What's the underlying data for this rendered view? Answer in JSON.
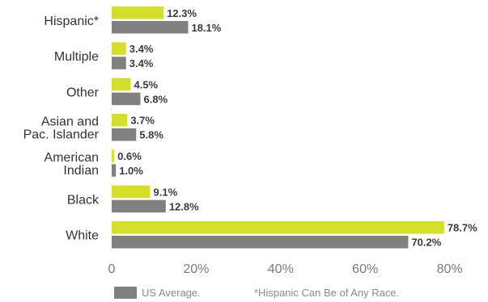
{
  "chart_data": {
    "type": "bar",
    "orientation": "horizontal",
    "categories": [
      [
        "Hispanic*"
      ],
      [
        "Multiple"
      ],
      [
        "Other"
      ],
      [
        "Asian and",
        "Pac. Islander"
      ],
      [
        "American",
        "Indian"
      ],
      [
        "Black"
      ],
      [
        "White"
      ]
    ],
    "series": [
      {
        "values": [
          12.3,
          3.4,
          4.5,
          3.7,
          0.6,
          9.1,
          78.7
        ],
        "labels": [
          "12.3%",
          "3.4%",
          "4.5%",
          "3.7%",
          "0.6%",
          "9.1%",
          "78.7%"
        ],
        "color": "#d4df2a"
      },
      {
        "name": "US Average.",
        "values": [
          18.1,
          3.4,
          6.8,
          5.8,
          1.0,
          12.8,
          70.2
        ],
        "labels": [
          "18.1%",
          "3.4%",
          "6.8%",
          "5.8%",
          "1.0%",
          "12.8%",
          "70.2%"
        ],
        "color": "#808080"
      }
    ],
    "xlim": [
      0,
      80
    ],
    "xticks": [
      0,
      20,
      40,
      60,
      80
    ],
    "xtick_labels": [
      "0",
      "20%",
      "40%",
      "60%",
      "80%"
    ],
    "grid": false
  },
  "legend": {
    "series_label": "US Average.",
    "note": "*Hispanic Can Be of Any Race."
  }
}
